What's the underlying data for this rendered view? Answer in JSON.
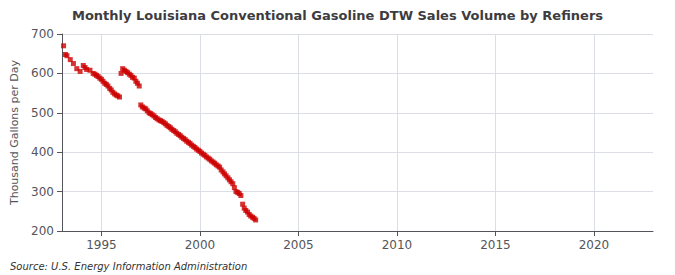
{
  "chart_data": {
    "type": "scatter",
    "title": "Monthly Louisiana Conventional Gasoline DTW Sales Volume by Refiners",
    "ylabel": "Thousand Gallons per Day",
    "annotations": [
      "Source: U.S. Energy Information Administration"
    ],
    "color": "#cc0000",
    "marker": "square",
    "grid": true,
    "xlim": [
      1993.0,
      2023.0
    ],
    "ylim": [
      200,
      700
    ],
    "xticks": [
      1995,
      2000,
      2005,
      2010,
      2015,
      2020
    ],
    "yticks": [
      200,
      300,
      400,
      500,
      600,
      700
    ],
    "x": [
      1993.08,
      1993.17,
      1993.25,
      1993.42,
      1993.58,
      1993.75,
      1993.92,
      1994.08,
      1994.17,
      1994.25,
      1994.42,
      1994.58,
      1994.67,
      1994.75,
      1994.83,
      1994.92,
      1995.0,
      1995.08,
      1995.17,
      1995.25,
      1995.33,
      1995.42,
      1995.5,
      1995.58,
      1995.67,
      1995.75,
      1995.83,
      1995.92,
      1996.0,
      1996.08,
      1996.17,
      1996.25,
      1996.33,
      1996.42,
      1996.5,
      1996.58,
      1996.67,
      1996.75,
      1996.83,
      1996.92,
      1997.0,
      1997.08,
      1997.17,
      1997.25,
      1997.33,
      1997.42,
      1997.5,
      1997.58,
      1997.67,
      1997.75,
      1997.83,
      1997.92,
      1998.0,
      1998.08,
      1998.17,
      1998.25,
      1998.33,
      1998.42,
      1998.5,
      1998.58,
      1998.67,
      1998.75,
      1998.83,
      1998.92,
      1999.0,
      1999.08,
      1999.17,
      1999.25,
      1999.33,
      1999.42,
      1999.5,
      1999.58,
      1999.67,
      1999.75,
      1999.83,
      1999.92,
      2000.0,
      2000.08,
      2000.17,
      2000.25,
      2000.33,
      2000.42,
      2000.5,
      2000.58,
      2000.67,
      2000.75,
      2000.83,
      2000.92,
      2001.0,
      2001.08,
      2001.17,
      2001.25,
      2001.33,
      2001.42,
      2001.5,
      2001.58,
      2001.67,
      2001.75,
      2001.83,
      2001.92,
      2002.0,
      2002.08,
      2002.17,
      2002.25,
      2002.33,
      2002.42,
      2002.5,
      2002.58,
      2002.67,
      2002.75,
      2002.83
    ],
    "values": [
      670,
      648,
      645,
      635,
      625,
      612,
      605,
      620,
      615,
      610,
      608,
      600,
      598,
      595,
      592,
      588,
      585,
      580,
      575,
      572,
      568,
      562,
      558,
      552,
      548,
      545,
      543,
      540,
      600,
      612,
      608,
      605,
      602,
      598,
      595,
      590,
      588,
      580,
      575,
      568,
      520,
      515,
      512,
      510,
      505,
      500,
      498,
      495,
      492,
      488,
      485,
      482,
      480,
      478,
      475,
      472,
      468,
      465,
      462,
      458,
      455,
      452,
      448,
      445,
      442,
      438,
      435,
      432,
      428,
      425,
      422,
      418,
      415,
      412,
      408,
      405,
      402,
      398,
      395,
      392,
      388,
      385,
      382,
      378,
      375,
      372,
      368,
      365,
      362,
      355,
      350,
      345,
      340,
      335,
      330,
      325,
      320,
      310,
      300,
      298,
      295,
      290,
      268,
      258,
      252,
      248,
      242,
      238,
      235,
      232,
      228
    ]
  }
}
